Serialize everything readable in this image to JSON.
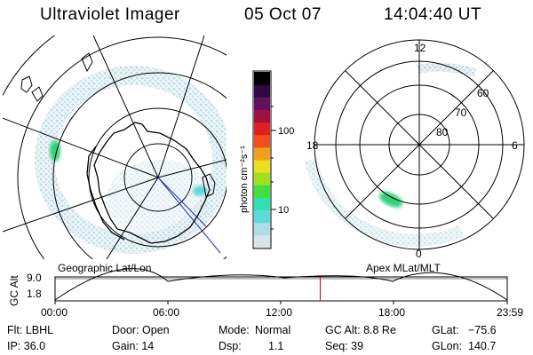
{
  "header": {
    "instrument": "Ultraviolet Imager",
    "date": "05 Oct 07",
    "time": "14:04:40 UT"
  },
  "geo_map": {
    "label": "Geographic Lat/Lon"
  },
  "apex_map": {
    "label": "Apex MLat/MLT",
    "mlt_labels": {
      "top": "12",
      "left": "18",
      "right": "6",
      "bottom": "0"
    },
    "lat_labels": [
      "60",
      "70",
      "80"
    ]
  },
  "colorbar": {
    "label": "photon cm⁻²s⁻¹",
    "ticks": [
      "100",
      "10"
    ],
    "scale": "log",
    "colors": [
      "#d8e4ec",
      "#b0dce4",
      "#60d8d8",
      "#30e0b0",
      "#40e040",
      "#a0e020",
      "#e8e020",
      "#f0a020",
      "#f05020",
      "#e02020",
      "#a01040",
      "#601060",
      "#300840",
      "#000000"
    ]
  },
  "altitude_plot": {
    "ylabel": "GC Alt",
    "y_ticks": [
      "9.0",
      "1.8"
    ],
    "x_ticks": [
      "00:00",
      "06:00",
      "12:00",
      "18:00",
      "23:59"
    ],
    "current_time_fraction": 0.5865
  },
  "info": {
    "filter": "Flt: LBHL",
    "door": "Door: Open",
    "mode_label": "Mode:",
    "mode_value": "Normal",
    "gc_alt": "GC Alt: 8.8 Re",
    "glat_label": "GLat:",
    "glat_value": "−75.6",
    "ip": "IP: 36.0",
    "gain": "Gain: 14",
    "dsp_label": "Dsp:",
    "dsp_value": "1.1",
    "seq": "Seq: 39",
    "glon_label": "GLon:",
    "glon_value": "140.7"
  }
}
